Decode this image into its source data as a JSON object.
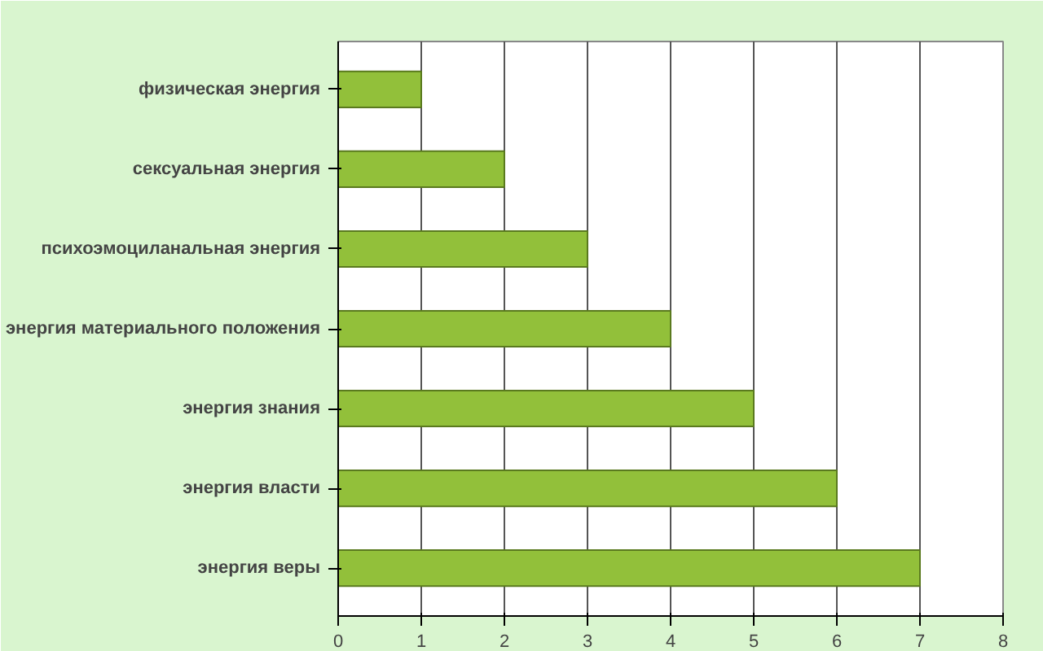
{
  "chart_data": {
    "type": "bar",
    "orientation": "horizontal",
    "categories": [
      "физическая энергия",
      "сексуальная энергия",
      "психоэмоциланальная энергия",
      "энергия материального положения",
      "энергия знания",
      "энергия власти",
      "энергия веры"
    ],
    "values": [
      1,
      2,
      3,
      4,
      5,
      6,
      7
    ],
    "color": "#92c03a",
    "xlim": [
      0,
      8
    ],
    "xticks": [
      0,
      1,
      2,
      3,
      4,
      5,
      6,
      7,
      8
    ],
    "grid": "x"
  }
}
